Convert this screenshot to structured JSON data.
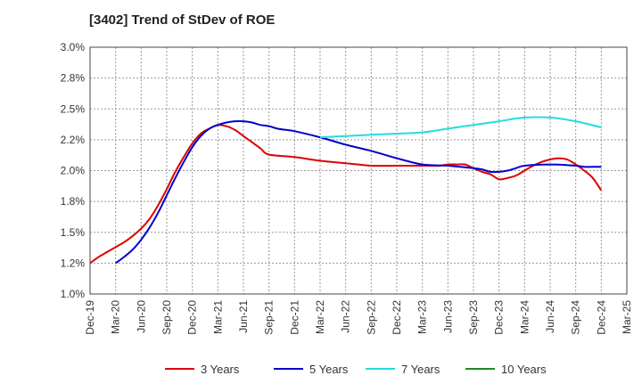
{
  "title": "[3402]  Trend of StDev of ROE",
  "chart_data": {
    "type": "line",
    "title": "[3402]  Trend of StDev of ROE",
    "x_ticks": [
      "Dec-19",
      "Mar-20",
      "Jun-20",
      "Sep-20",
      "Dec-20",
      "Mar-21",
      "Jun-21",
      "Sep-21",
      "Dec-21",
      "Mar-22",
      "Jun-22",
      "Sep-22",
      "Dec-22",
      "Mar-23",
      "Jun-23",
      "Sep-23",
      "Dec-23",
      "Mar-24",
      "Jun-24",
      "Sep-24",
      "Dec-24",
      "Mar-25"
    ],
    "y_ticks": [
      "1.0%",
      "1.2%",
      "1.5%",
      "1.8%",
      "2.0%",
      "2.2%",
      "2.5%",
      "2.8%",
      "3.0%"
    ],
    "ylim": [
      1.0,
      3.0
    ],
    "y_unit": "%",
    "grid": true,
    "legend_position": "bottom",
    "series": [
      {
        "name": "3 Years",
        "color": "#dd0000",
        "x": [
          "Dec-19",
          "Jan-20",
          "Feb-20",
          "Mar-20",
          "Apr-20",
          "May-20",
          "Jun-20",
          "Jul-20",
          "Aug-20",
          "Sep-20",
          "Oct-20",
          "Nov-20",
          "Dec-20",
          "Jan-21",
          "Feb-21",
          "Mar-21",
          "Apr-21",
          "May-21",
          "Jun-21",
          "Jul-21",
          "Aug-21",
          "Sep-21",
          "Dec-21",
          "Mar-22",
          "Jun-22",
          "Sep-22",
          "Dec-22",
          "Mar-23",
          "Apr-23",
          "May-23",
          "Jun-23",
          "Jul-23",
          "Aug-23",
          "Sep-23",
          "Oct-23",
          "Nov-23",
          "Dec-23",
          "Jan-24",
          "Feb-24",
          "Mar-24",
          "Apr-24",
          "May-24",
          "Jun-24",
          "Jul-24",
          "Aug-24",
          "Sep-24",
          "Oct-24",
          "Nov-24",
          "Dec-24"
        ],
        "values": [
          1.25,
          1.3,
          1.34,
          1.38,
          1.42,
          1.47,
          1.53,
          1.61,
          1.72,
          1.85,
          1.99,
          2.11,
          2.22,
          2.3,
          2.34,
          2.37,
          2.36,
          2.33,
          2.28,
          2.23,
          2.18,
          2.13,
          2.11,
          2.08,
          2.06,
          2.04,
          2.04,
          2.04,
          2.04,
          2.04,
          2.05,
          2.05,
          2.05,
          2.02,
          1.99,
          1.97,
          1.93,
          1.94,
          1.96,
          2.0,
          2.04,
          2.07,
          2.09,
          2.1,
          2.09,
          2.05,
          2.0,
          1.94,
          1.84
        ]
      },
      {
        "name": "5 Years",
        "color": "#0000cc",
        "x": [
          "Mar-20",
          "Apr-20",
          "May-20",
          "Jun-20",
          "Jul-20",
          "Aug-20",
          "Sep-20",
          "Oct-20",
          "Nov-20",
          "Dec-20",
          "Jan-21",
          "Feb-21",
          "Mar-21",
          "Apr-21",
          "May-21",
          "Jun-21",
          "Jul-21",
          "Aug-21",
          "Sep-21",
          "Oct-21",
          "Nov-21",
          "Dec-21",
          "Mar-22",
          "Jun-22",
          "Sep-22",
          "Dec-22",
          "Mar-23",
          "Jun-23",
          "Sep-23",
          "Oct-23",
          "Nov-23",
          "Dec-23",
          "Jan-24",
          "Feb-24",
          "Mar-24",
          "Jun-24",
          "Sep-24",
          "Oct-24",
          "Nov-24",
          "Dec-24"
        ],
        "values": [
          1.25,
          1.3,
          1.36,
          1.44,
          1.54,
          1.66,
          1.8,
          1.94,
          2.07,
          2.19,
          2.28,
          2.34,
          2.37,
          2.39,
          2.4,
          2.4,
          2.39,
          2.37,
          2.36,
          2.34,
          2.33,
          2.32,
          2.27,
          2.21,
          2.16,
          2.1,
          2.05,
          2.04,
          2.02,
          2.01,
          1.99,
          1.99,
          2.0,
          2.02,
          2.04,
          2.05,
          2.04,
          2.03,
          2.03,
          2.03
        ]
      },
      {
        "name": "7 Years",
        "color": "#22dddd",
        "x": [
          "Mar-22",
          "Jun-22",
          "Sep-22",
          "Dec-22",
          "Mar-23",
          "Jun-23",
          "Sep-23",
          "Dec-23",
          "Mar-24",
          "Jun-24",
          "Sep-24",
          "Dec-24"
        ],
        "values": [
          2.27,
          2.28,
          2.29,
          2.3,
          2.31,
          2.34,
          2.37,
          2.4,
          2.43,
          2.43,
          2.4,
          2.35
        ]
      },
      {
        "name": "10 Years",
        "color": "#228822",
        "x": [],
        "values": []
      }
    ]
  }
}
